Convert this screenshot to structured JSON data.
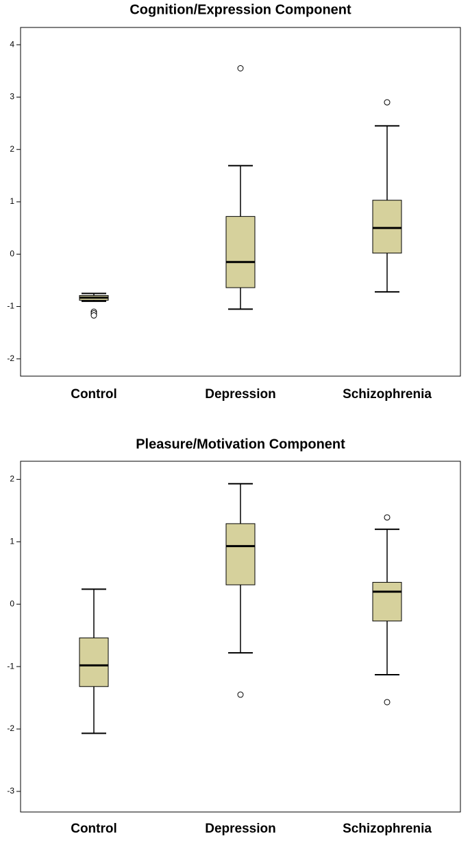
{
  "chart_data": [
    {
      "type": "box",
      "title": "Cognition/Expression Component",
      "categories": [
        "Control",
        "Depression",
        "Schizophrenia"
      ],
      "color": "#d6d19c",
      "boxes": [
        {
          "min": -0.9,
          "q1": -0.88,
          "median": -0.83,
          "q3": -0.79,
          "max": -0.75,
          "outliers": [
            -1.1,
            -1.13,
            -1.17
          ]
        },
        {
          "min": -1.05,
          "q1": -0.64,
          "median": -0.15,
          "q3": 0.72,
          "max": 1.69,
          "outliers": [
            3.55
          ]
        },
        {
          "min": -0.72,
          "q1": 0.02,
          "median": 0.5,
          "q3": 1.03,
          "max": 2.45,
          "outliers": [
            2.9
          ]
        }
      ],
      "ylim": [
        -2.33,
        4.33
      ],
      "yticks": [
        -2,
        -1,
        0,
        1,
        2,
        3,
        4
      ],
      "grid": false
    },
    {
      "type": "box",
      "title": "Pleasure/Motivation Component",
      "categories": [
        "Control",
        "Depression",
        "Schizophrenia"
      ],
      "color": "#d6d19c",
      "boxes": [
        {
          "min": -2.07,
          "q1": -1.32,
          "median": -0.98,
          "q3": -0.54,
          "max": 0.24,
          "outliers": []
        },
        {
          "min": -0.78,
          "q1": 0.31,
          "median": 0.93,
          "q3": 1.29,
          "max": 1.93,
          "outliers": [
            -1.45
          ]
        },
        {
          "min": -1.13,
          "q1": -0.27,
          "median": 0.2,
          "q3": 0.35,
          "max": 1.2,
          "outliers": [
            1.39,
            -1.57
          ]
        }
      ],
      "ylim": [
        -3.33,
        2.29
      ],
      "yticks": [
        -3,
        -2,
        -1,
        0,
        1,
        2
      ],
      "grid": false
    }
  ]
}
